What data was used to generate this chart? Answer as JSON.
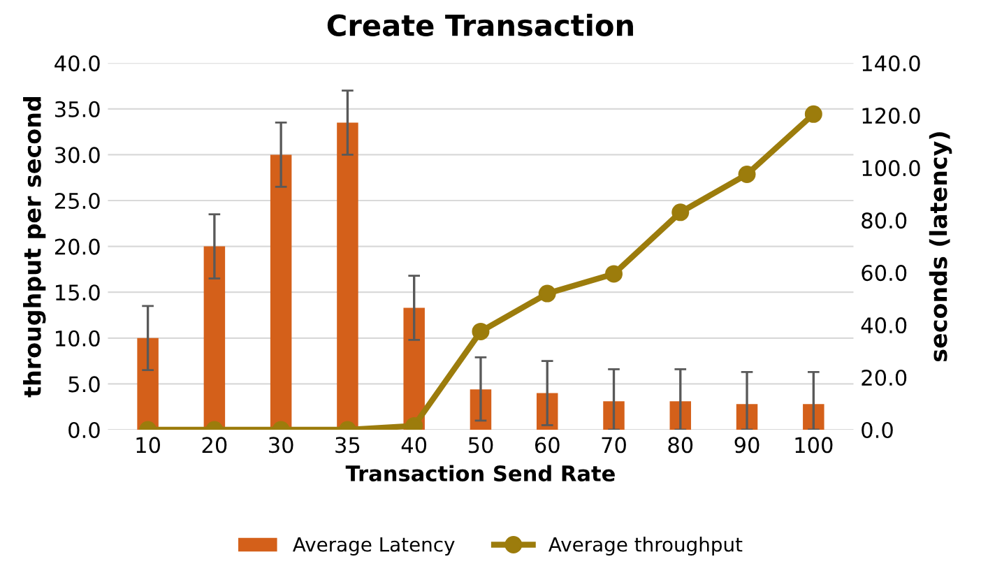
{
  "chart_data": {
    "type": "bar",
    "title": "Create Transaction",
    "xlabel": "Transaction Send Rate",
    "ylabel": "throughput per second",
    "y2label": "seconds (latency)",
    "categories": [
      "10",
      "20",
      "30",
      "35",
      "40",
      "50",
      "60",
      "70",
      "80",
      "90",
      "100"
    ],
    "series": [
      {
        "name": "Average Latency",
        "color": "#d4601a",
        "values": [
          10.0,
          20.0,
          30.0,
          33.5,
          13.3,
          4.4,
          4.0,
          3.1,
          3.1,
          2.8,
          2.8
        ],
        "errors": [
          3.5,
          3.5,
          3.5,
          3.5,
          3.5,
          [
            1.0,
            7.9
          ],
          [
            0.5,
            7.5
          ],
          [
            0.0,
            6.6
          ],
          [
            0.0,
            6.6
          ],
          [
            0.0,
            6.3
          ],
          [
            0.0,
            6.3
          ]
        ]
      },
      {
        "name": "Average throughput",
        "type": "line",
        "axis": "y2",
        "color": "#9c7c0c",
        "marker": "circle",
        "values": [
          0.0,
          0.0,
          0.0,
          0.0,
          1.5,
          37.5,
          52.0,
          59.5,
          83.0,
          97.5,
          120.5
        ]
      }
    ],
    "ylim": [
      0,
      40
    ],
    "yticks": [
      {
        "value": 0,
        "label": "0.0"
      },
      {
        "value": 5,
        "label": "5.0"
      },
      {
        "value": 10,
        "label": "10.0"
      },
      {
        "value": 15,
        "label": "15.0"
      },
      {
        "value": 20,
        "label": "20.0"
      },
      {
        "value": 25,
        "label": "25.0"
      },
      {
        "value": 30,
        "label": "30.0"
      },
      {
        "value": 35,
        "label": "35.0"
      },
      {
        "value": 40,
        "label": "40.0"
      }
    ],
    "y2lim": [
      0,
      140
    ],
    "y2ticks": [
      {
        "value": 0,
        "label": "0.0"
      },
      {
        "value": 20,
        "label": "20.0"
      },
      {
        "value": 40,
        "label": "40.0"
      },
      {
        "value": 60,
        "label": "60.0"
      },
      {
        "value": 80,
        "label": "80.0"
      },
      {
        "value": 100,
        "label": "100.0"
      },
      {
        "value": 120,
        "label": "120.0"
      },
      {
        "value": 140,
        "label": "140.0"
      }
    ],
    "grid": "y",
    "legend": "bottom"
  }
}
